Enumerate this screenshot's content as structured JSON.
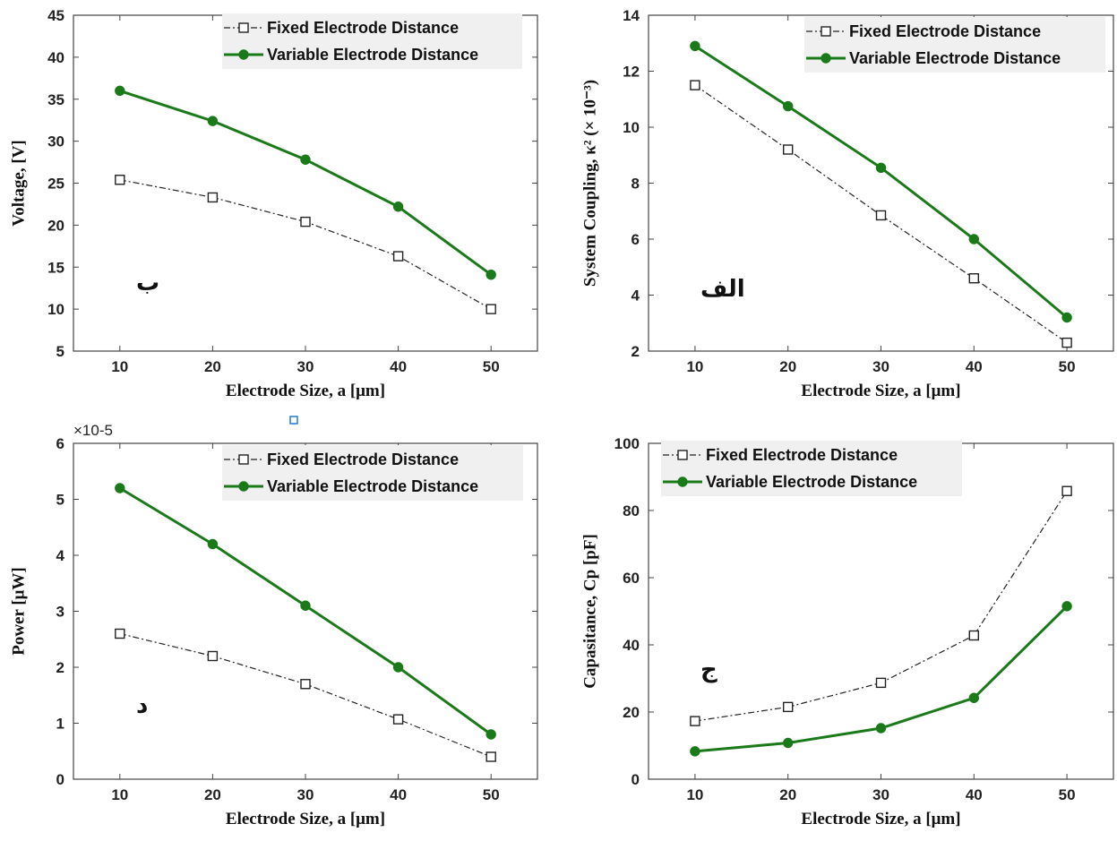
{
  "colors": {
    "fixed": "#222222",
    "variable": "#1a7a1a",
    "frame": "#444444",
    "legend_bg": "#f0f0f0",
    "stray_marker": "#1e7fd8"
  },
  "chart_data": [
    {
      "id": "tl",
      "type": "line",
      "panel_label": "ب",
      "xlabel": "Electrode Size, a [μm]",
      "ylabel": "Voltage, [V]",
      "x": [
        10,
        20,
        30,
        40,
        50
      ],
      "xlim": [
        5,
        55
      ],
      "ylim": [
        5,
        45
      ],
      "xticks": [
        "10",
        "20",
        "30",
        "40",
        "50"
      ],
      "yticks": [
        "5",
        "10",
        "15",
        "20",
        "25",
        "30",
        "35",
        "40",
        "45"
      ],
      "exponent_label": "",
      "legend_position": "top-right",
      "series": [
        {
          "name": "Fixed Electrode Distance",
          "values": [
            25.4,
            23.3,
            20.4,
            16.3,
            10.0
          ]
        },
        {
          "name": "Variable Electrode Distance",
          "values": [
            36.0,
            32.4,
            27.8,
            22.2,
            14.1
          ]
        }
      ]
    },
    {
      "id": "tr",
      "type": "line",
      "panel_label": "الف",
      "xlabel": "Electrode Size, a [μm]",
      "ylabel": "System Coupling, κ² (× 10⁻³)",
      "x": [
        10,
        20,
        30,
        40,
        50
      ],
      "xlim": [
        5,
        55
      ],
      "ylim": [
        2,
        14
      ],
      "xticks": [
        "10",
        "20",
        "30",
        "40",
        "50"
      ],
      "yticks": [
        "2",
        "4",
        "6",
        "8",
        "10",
        "12",
        "14"
      ],
      "exponent_label": "",
      "legend_position": "top-right",
      "series": [
        {
          "name": "Fixed Electrode Distance",
          "values": [
            11.5,
            9.2,
            6.85,
            4.6,
            2.3
          ]
        },
        {
          "name": "Variable Electrode Distance",
          "values": [
            12.9,
            10.75,
            8.55,
            6.0,
            3.2
          ]
        }
      ]
    },
    {
      "id": "bl",
      "type": "line",
      "panel_label": "د",
      "xlabel": "Electrode Size, a [μm]",
      "ylabel": "Power [μW]",
      "x": [
        10,
        20,
        30,
        40,
        50
      ],
      "xlim": [
        5,
        55
      ],
      "ylim": [
        0,
        6
      ],
      "xticks": [
        "10",
        "20",
        "30",
        "40",
        "50"
      ],
      "yticks": [
        "0",
        "1",
        "2",
        "3",
        "4",
        "5",
        "6"
      ],
      "exponent_label": "×10-5",
      "legend_position": "top-right",
      "series": [
        {
          "name": "Fixed Electrode Distance",
          "values": [
            2.6,
            2.2,
            1.7,
            1.07,
            0.4
          ]
        },
        {
          "name": "Variable Electrode Distance",
          "values": [
            5.2,
            4.2,
            3.1,
            2.0,
            0.8
          ]
        }
      ]
    },
    {
      "id": "br",
      "type": "line",
      "panel_label": "ج",
      "xlabel": "Electrode Size, a [μm]",
      "ylabel": "Capasitance, Cp [pF]",
      "x": [
        10,
        20,
        30,
        40,
        50
      ],
      "xlim": [
        5,
        55
      ],
      "ylim": [
        0,
        100
      ],
      "xticks": [
        "10",
        "20",
        "30",
        "40",
        "50"
      ],
      "yticks": [
        "0",
        "20",
        "40",
        "60",
        "80",
        "100"
      ],
      "exponent_label": "",
      "legend_position": "top-left",
      "series": [
        {
          "name": "Fixed Electrode Distance",
          "values": [
            17.3,
            21.5,
            28.7,
            42.8,
            85.8
          ]
        },
        {
          "name": "Variable Electrode Distance",
          "values": [
            8.3,
            10.8,
            15.2,
            24.2,
            51.5
          ]
        }
      ]
    }
  ]
}
